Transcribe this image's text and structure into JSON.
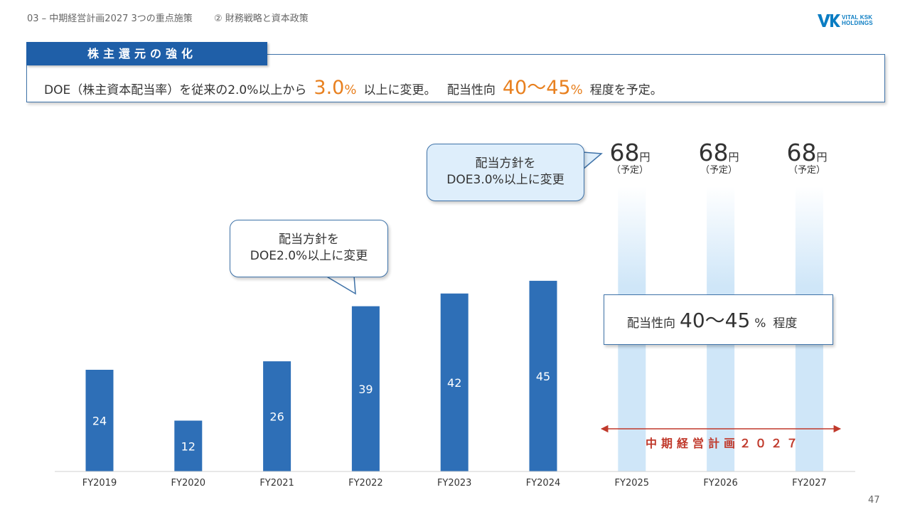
{
  "header": {
    "breadcrumb": "03 – 中期経営計画2027  3つの重点施策",
    "section": "② 財務戦略と資本政策",
    "logo_line1": "VITAL KSK",
    "logo_line2": "HOLDINGS"
  },
  "policy": {
    "tab_label": "株主還元の強化",
    "text_before": "DOE（株主資本配当率）を従来の2.0%以上から",
    "doe_new": "3.0",
    "pct_symbol": "%",
    "text_middle": "以上に変更。",
    "text_payout": "配当性向",
    "payout_range": "40～45",
    "text_after": "程度を予定。"
  },
  "callouts": {
    "a_line1": "配当方針を",
    "a_line2": "DOE2.0%以上に変更",
    "b_line1": "配当方針を",
    "b_line2": "DOE3.0%以上に変更"
  },
  "forecast": {
    "amount": "68",
    "unit": "円",
    "note": "（予定）"
  },
  "payout_box": {
    "label": "配当性向",
    "range": "40～45",
    "pct": "%",
    "suffix": "程度"
  },
  "plan_label": "中期経営計画２０２７",
  "page_number": "47",
  "colors": {
    "bar": "#2e6fb7",
    "forecast_bar": "#cfe6f8",
    "accent_orange": "#e8801f",
    "plan_red": "#c0392b",
    "brand_blue": "#1f5fa8"
  },
  "chart_data": {
    "type": "bar",
    "categories": [
      "FY2019",
      "FY2020",
      "FY2021",
      "FY2022",
      "FY2023",
      "FY2024",
      "FY2025",
      "FY2026",
      "FY2027"
    ],
    "values": [
      24,
      12,
      26,
      39,
      42,
      45,
      68,
      68,
      68
    ],
    "value_labels": [
      "24",
      "12",
      "26",
      "39",
      "42",
      "45",
      "",
      "",
      ""
    ],
    "forecast_categories": [
      "FY2025",
      "FY2026",
      "FY2027"
    ],
    "ylim": [
      0,
      72
    ],
    "title": "",
    "xlabel": "",
    "ylabel": "",
    "grid": false
  }
}
